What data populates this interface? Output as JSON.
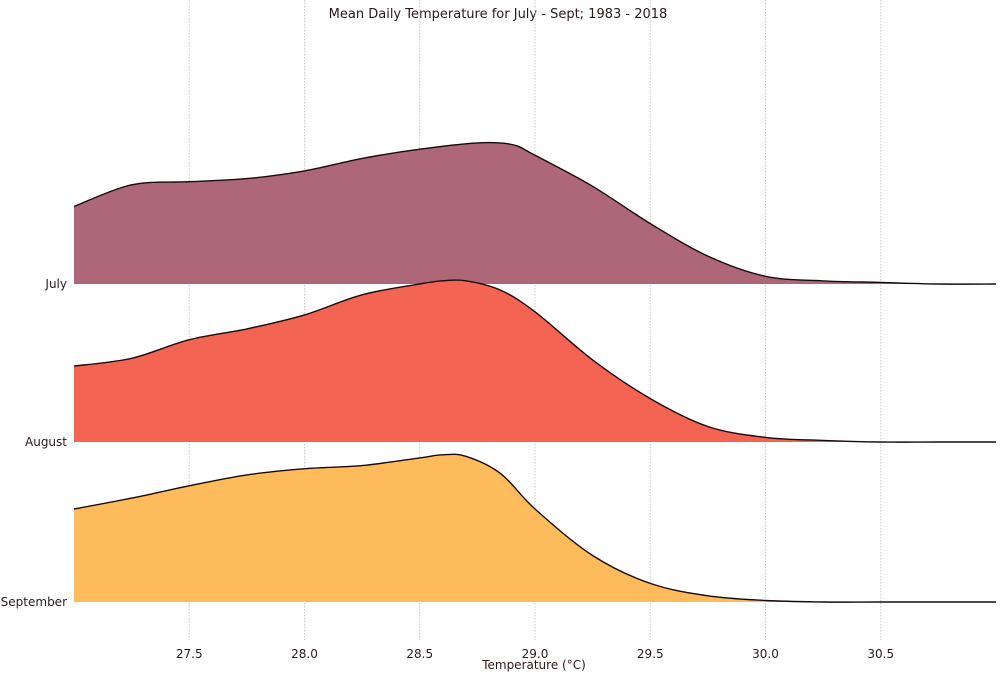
{
  "chart_data": {
    "type": "area",
    "title": "Mean Daily Temperature for July - Sept; 1983 - 2018",
    "xlabel": "Temperature (°C)",
    "ylabel": "",
    "xlim": [
      27.0,
      31.0
    ],
    "x_ticks": [
      "27.5",
      "28.0",
      "28.5",
      "29.0",
      "29.5",
      "30.0",
      "30.5"
    ],
    "grid": true,
    "series": [
      {
        "name": "July",
        "color": "#ae6779",
        "x": [
          27.0,
          27.25,
          27.5,
          27.75,
          28.0,
          28.25,
          28.5,
          28.75,
          28.9,
          29.0,
          29.25,
          29.5,
          29.75,
          30.0,
          30.25,
          30.5,
          30.75,
          31.0
        ],
        "density": [
          0.5,
          0.64,
          0.66,
          0.68,
          0.73,
          0.81,
          0.87,
          0.91,
          0.9,
          0.83,
          0.63,
          0.39,
          0.18,
          0.05,
          0.02,
          0.01,
          0.0,
          0.0
        ]
      },
      {
        "name": "August",
        "color": "#f46453",
        "x": [
          27.0,
          27.25,
          27.5,
          27.75,
          28.0,
          28.25,
          28.5,
          28.6,
          28.7,
          28.85,
          29.0,
          29.25,
          29.5,
          29.75,
          30.0,
          30.25,
          30.5,
          30.75,
          31.0
        ],
        "density": [
          0.49,
          0.54,
          0.66,
          0.73,
          0.82,
          0.95,
          1.02,
          1.04,
          1.04,
          0.98,
          0.84,
          0.53,
          0.28,
          0.1,
          0.03,
          0.01,
          0.0,
          0.0,
          0.0
        ]
      },
      {
        "name": "September",
        "color": "#fdbb5c",
        "x": [
          27.0,
          27.25,
          27.5,
          27.75,
          28.0,
          28.25,
          28.5,
          28.6,
          28.7,
          28.85,
          29.0,
          29.25,
          29.5,
          29.75,
          30.0,
          30.25,
          30.5,
          30.75,
          31.0
        ],
        "density": [
          0.6,
          0.67,
          0.75,
          0.82,
          0.86,
          0.88,
          0.93,
          0.95,
          0.94,
          0.83,
          0.6,
          0.3,
          0.12,
          0.04,
          0.01,
          0.0,
          0.0,
          0.0,
          0.0
        ]
      }
    ]
  }
}
